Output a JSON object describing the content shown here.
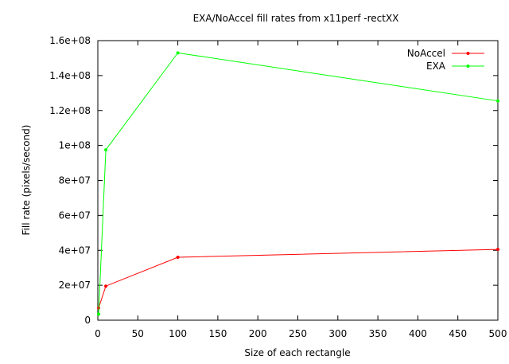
{
  "chart_data": {
    "type": "line",
    "title": "EXA/NoAccel fill rates from x11perf -rectXX",
    "xlabel": "Size of each rectangle",
    "ylabel": "Fill rate (pixels/second)",
    "xlim": [
      0,
      500
    ],
    "ylim": [
      0,
      160000000
    ],
    "xticks": [
      0,
      50,
      100,
      150,
      200,
      250,
      300,
      350,
      400,
      450,
      500
    ],
    "xtick_labels": [
      "0",
      "50",
      "100",
      "150",
      "200",
      "250",
      "300",
      "350",
      "400",
      "450",
      "500"
    ],
    "yticks": [
      0,
      20000000,
      40000000,
      60000000,
      80000000,
      100000000,
      120000000,
      140000000,
      160000000
    ],
    "ytick_labels": [
      "0",
      "2e+07",
      "4e+07",
      "6e+07",
      "8e+07",
      "1e+08",
      "1.2e+08",
      "1.4e+08",
      "1.6e+08"
    ],
    "grid": false,
    "legend_position": "top-right",
    "series": [
      {
        "name": "NoAccel",
        "color": "#ff0000",
        "x": [
          1,
          10,
          100,
          500
        ],
        "y": [
          7000000,
          19500000,
          36000000,
          40500000
        ]
      },
      {
        "name": "EXA",
        "color": "#00ff00",
        "x": [
          1,
          10,
          100,
          500
        ],
        "y": [
          3500000,
          97500000,
          153000000,
          125500000
        ]
      }
    ]
  }
}
